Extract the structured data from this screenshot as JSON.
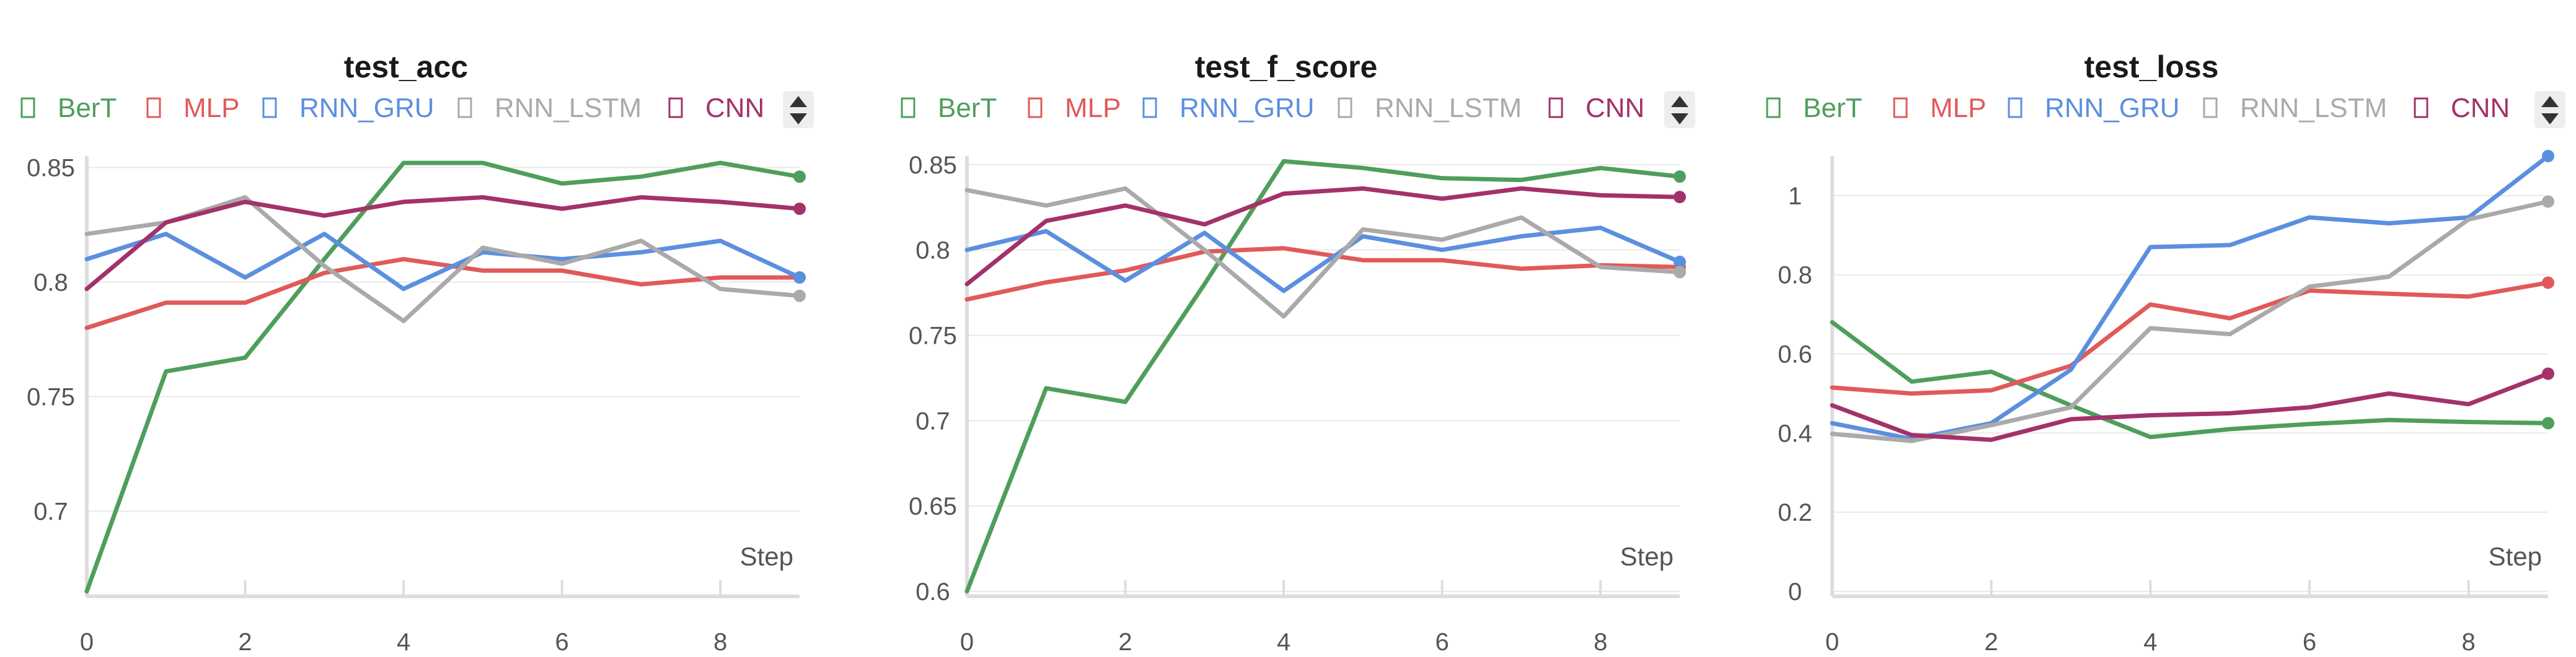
{
  "legend_scroll_icon": "up-down-arrows-icon",
  "colors": {
    "BerT": "#4f9e5c",
    "MLP": "#e05a5a",
    "RNN_GRU": "#5b8fe0",
    "RNN_LSTM": "#aaaaaa",
    "CNN": "#a3326b"
  },
  "chart_data": [
    {
      "type": "line",
      "title": "test_acc",
      "xlabel": "Step",
      "ylabel": "",
      "x": [
        0,
        1,
        2,
        3,
        4,
        5,
        6,
        7,
        8,
        9
      ],
      "xticks": [
        "0",
        "2",
        "4",
        "6",
        "8"
      ],
      "xlim": [
        0,
        9
      ],
      "ylim": [
        0.665,
        0.855
      ],
      "yticks": [
        "0.7",
        "0.75",
        "0.8",
        "0.85"
      ],
      "grid": true,
      "legend": "top",
      "series": [
        {
          "name": "BerT",
          "values": [
            0.665,
            0.761,
            0.767,
            0.81,
            0.852,
            0.852,
            0.843,
            0.846,
            0.852,
            0.846
          ]
        },
        {
          "name": "MLP",
          "values": [
            0.78,
            0.791,
            0.791,
            0.804,
            0.81,
            0.805,
            0.805,
            0.799,
            0.802,
            0.802
          ]
        },
        {
          "name": "RNN_GRU",
          "values": [
            0.81,
            0.821,
            0.802,
            0.821,
            0.797,
            0.813,
            0.81,
            0.813,
            0.818,
            0.802
          ]
        },
        {
          "name": "RNN_LSTM",
          "values": [
            0.821,
            0.826,
            0.837,
            0.807,
            0.783,
            0.815,
            0.808,
            0.818,
            0.797,
            0.794
          ]
        },
        {
          "name": "CNN",
          "values": [
            0.797,
            0.826,
            0.835,
            0.829,
            0.835,
            0.837,
            0.832,
            0.837,
            0.835,
            0.832
          ]
        }
      ]
    },
    {
      "type": "line",
      "title": "test_f_score",
      "xlabel": "Step",
      "ylabel": "",
      "x": [
        0,
        1,
        2,
        3,
        4,
        5,
        6,
        7,
        8,
        9
      ],
      "xticks": [
        "0",
        "2",
        "4",
        "6",
        "8"
      ],
      "xlim": [
        0,
        9
      ],
      "ylim": [
        0.6,
        0.855
      ],
      "yticks": [
        "0.6",
        "0.65",
        "0.7",
        "0.75",
        "0.8",
        "0.85"
      ],
      "grid": true,
      "legend": "top",
      "series": [
        {
          "name": "BerT",
          "values": [
            0.6,
            0.719,
            0.711,
            0.78,
            0.852,
            0.848,
            0.842,
            0.841,
            0.848,
            0.843
          ]
        },
        {
          "name": "MLP",
          "values": [
            0.771,
            0.781,
            0.788,
            0.799,
            0.801,
            0.794,
            0.794,
            0.789,
            0.791,
            0.79
          ]
        },
        {
          "name": "RNN_GRU",
          "values": [
            0.8,
            0.811,
            0.782,
            0.81,
            0.776,
            0.808,
            0.8,
            0.808,
            0.813,
            0.793
          ]
        },
        {
          "name": "RNN_LSTM",
          "values": [
            0.835,
            0.826,
            0.836,
            0.8,
            0.761,
            0.812,
            0.806,
            0.819,
            0.79,
            0.787
          ]
        },
        {
          "name": "CNN",
          "values": [
            0.78,
            0.817,
            0.826,
            0.815,
            0.833,
            0.836,
            0.83,
            0.836,
            0.832,
            0.831
          ]
        }
      ]
    },
    {
      "type": "line",
      "title": "test_loss",
      "xlabel": "Step",
      "ylabel": "",
      "x": [
        0,
        1,
        2,
        3,
        4,
        5,
        6,
        7,
        8,
        9
      ],
      "xticks": [
        "0",
        "2",
        "4",
        "6",
        "8"
      ],
      "xlim": [
        0,
        9
      ],
      "ylim": [
        0,
        1.1
      ],
      "yticks": [
        "0",
        "0.2",
        "0.4",
        "0.6",
        "0.8",
        "1"
      ],
      "grid": true,
      "legend": "top",
      "series": [
        {
          "name": "BerT",
          "values": [
            0.68,
            0.53,
            0.555,
            0.47,
            0.39,
            0.41,
            0.423,
            0.433,
            0.428,
            0.425
          ]
        },
        {
          "name": "MLP",
          "values": [
            0.515,
            0.5,
            0.508,
            0.57,
            0.725,
            0.69,
            0.76,
            0.752,
            0.745,
            0.78
          ]
        },
        {
          "name": "RNN_GRU",
          "values": [
            0.425,
            0.385,
            0.425,
            0.56,
            0.87,
            0.875,
            0.945,
            0.93,
            0.945,
            1.1
          ]
        },
        {
          "name": "RNN_LSTM",
          "values": [
            0.398,
            0.38,
            0.42,
            0.465,
            0.665,
            0.65,
            0.77,
            0.795,
            0.94,
            0.985
          ]
        },
        {
          "name": "CNN",
          "values": [
            0.47,
            0.395,
            0.383,
            0.435,
            0.445,
            0.45,
            0.465,
            0.5,
            0.473,
            0.55
          ]
        }
      ]
    }
  ]
}
